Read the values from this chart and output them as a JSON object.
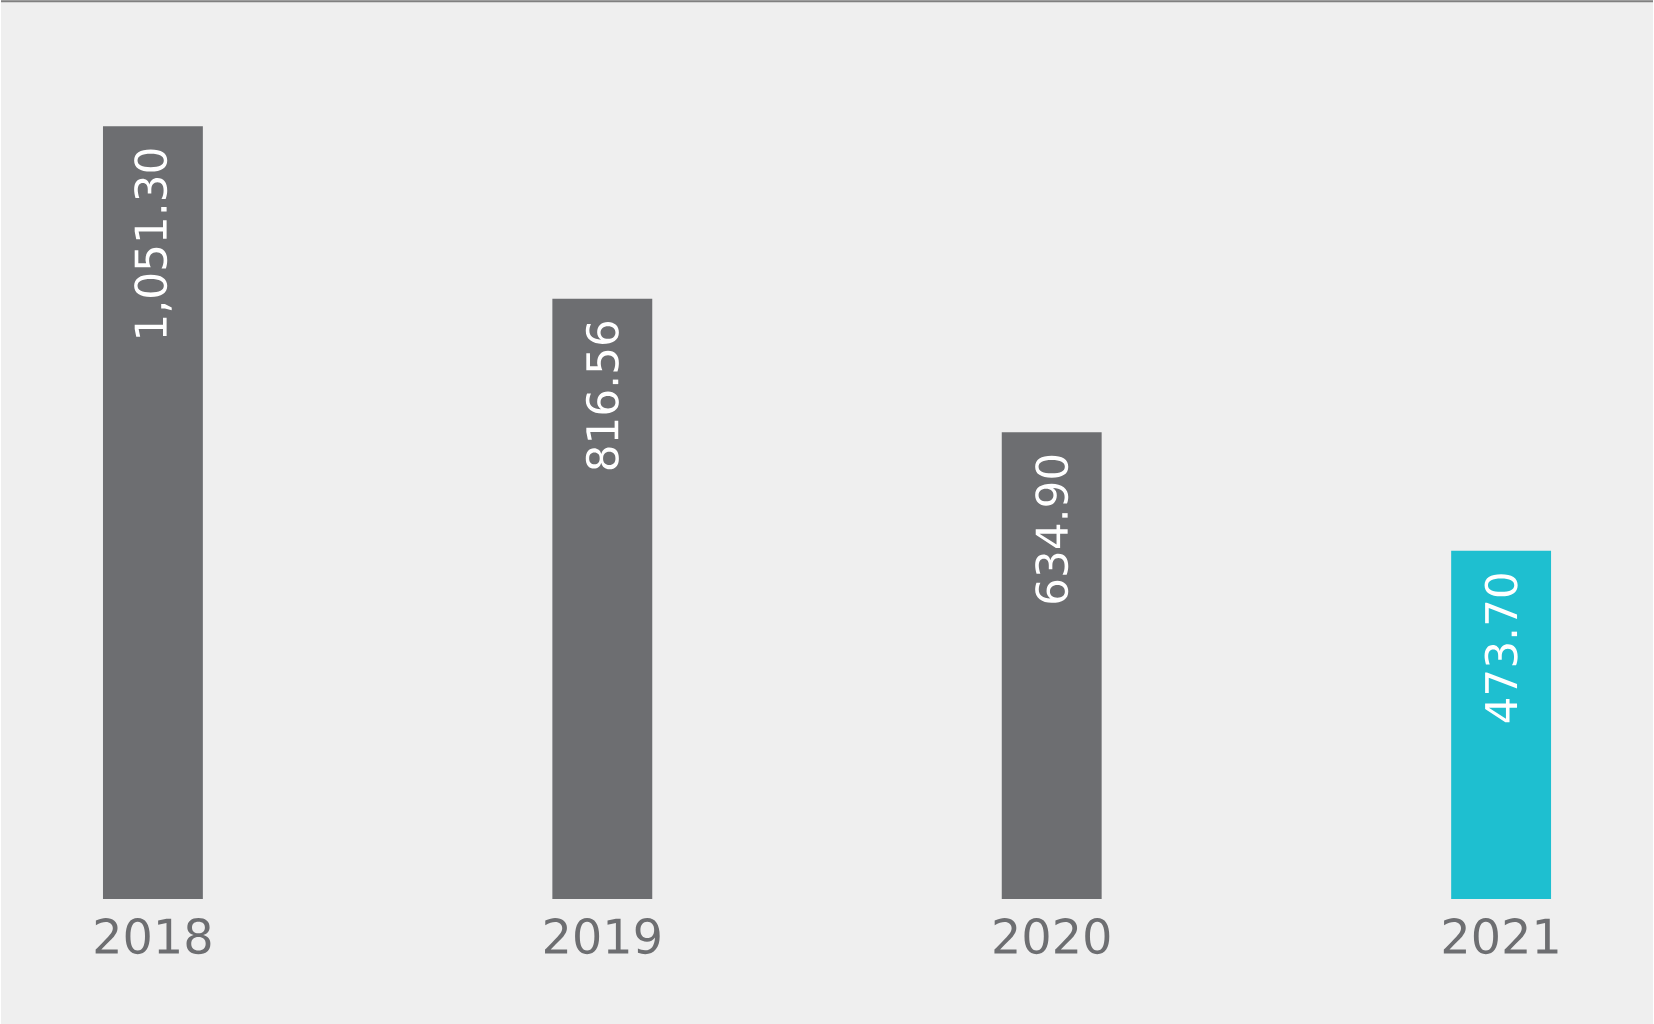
{
  "chart_data": {
    "type": "bar",
    "categories": [
      "2018",
      "2019",
      "2020",
      "2021"
    ],
    "values": [
      1051.3,
      816.56,
      634.9,
      473.7
    ],
    "colors": [
      "#6d6e71",
      "#6d6e71",
      "#6d6e71",
      "#1ebfd0"
    ],
    "value_labels": [
      "1,051.30",
      "816.56",
      "634.90",
      "473.70"
    ]
  }
}
